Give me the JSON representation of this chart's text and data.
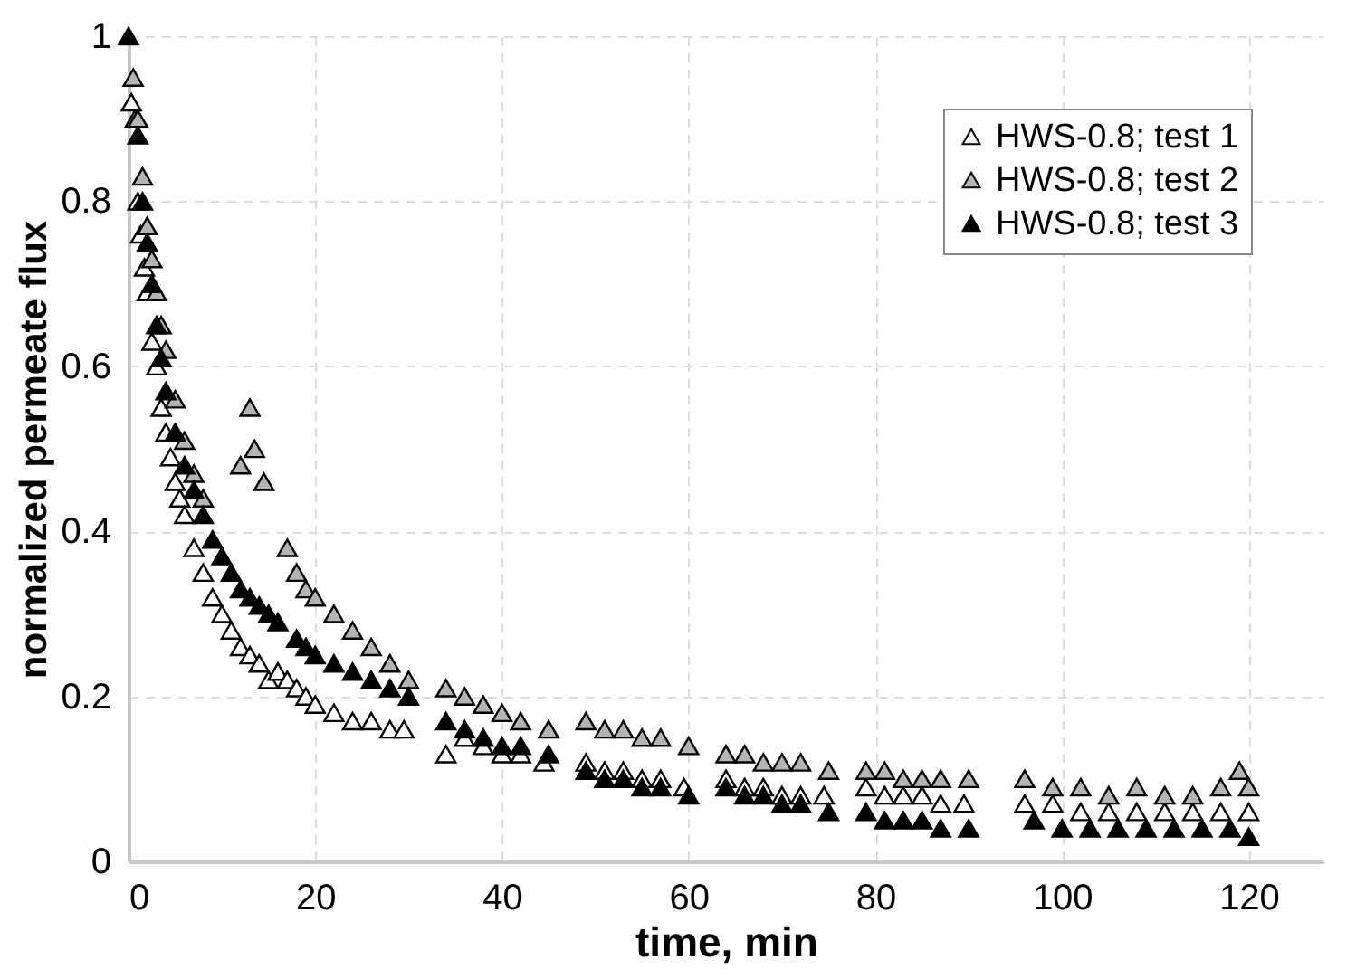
{
  "chart_data": {
    "type": "scatter",
    "xlabel": "time, min",
    "ylabel": "normalized permeate flux",
    "xlim": [
      0,
      128
    ],
    "xticks": [
      0,
      20,
      40,
      60,
      80,
      100,
      120
    ],
    "ylim": [
      0,
      1
    ],
    "yticks": [
      0,
      0.2,
      0.4,
      0.6,
      0.8,
      1
    ],
    "grid": true,
    "legend": "top right",
    "marker": "triangle",
    "series": [
      {
        "name": "HWS-0.8; test 1",
        "color": "#ffffff",
        "x": [
          0.3,
          0.7,
          1,
          1.3,
          1.7,
          2,
          2.5,
          3,
          3.5,
          4,
          4.5,
          5,
          5.5,
          6,
          7,
          8,
          9,
          10,
          11,
          12,
          13,
          14,
          15,
          16,
          17,
          18,
          19,
          20,
          22,
          24,
          26,
          28,
          29.5,
          34,
          36,
          38,
          40,
          42,
          44.5,
          49,
          51,
          53,
          55,
          57,
          59.5,
          64,
          66,
          68,
          70,
          72,
          74.5,
          79,
          81,
          83,
          85,
          87,
          89.5,
          96,
          99,
          102,
          105,
          108,
          111,
          114,
          117,
          120
        ],
        "values": [
          0.92,
          0.9,
          0.8,
          0.76,
          0.72,
          0.69,
          0.63,
          0.6,
          0.55,
          0.52,
          0.49,
          0.46,
          0.44,
          0.42,
          0.38,
          0.35,
          0.32,
          0.3,
          0.28,
          0.26,
          0.25,
          0.24,
          0.22,
          0.23,
          0.22,
          0.21,
          0.2,
          0.19,
          0.18,
          0.17,
          0.17,
          0.16,
          0.16,
          0.13,
          0.15,
          0.14,
          0.13,
          0.13,
          0.12,
          0.12,
          0.11,
          0.11,
          0.1,
          0.1,
          0.09,
          0.1,
          0.09,
          0.09,
          0.08,
          0.08,
          0.08,
          0.09,
          0.08,
          0.08,
          0.08,
          0.07,
          0.07,
          0.07,
          0.07,
          0.06,
          0.06,
          0.06,
          0.06,
          0.06,
          0.06,
          0.06
        ]
      },
      {
        "name": "HWS-0.8; test 2",
        "color": "#b4b4b4",
        "x": [
          0.5,
          1,
          1.5,
          2,
          2.5,
          3,
          3.5,
          4,
          5,
          6,
          7,
          8,
          12,
          13,
          13.5,
          14.5,
          17,
          18,
          19,
          20,
          22,
          24,
          26,
          28,
          30,
          34,
          36,
          38,
          40,
          42,
          45,
          49,
          51,
          53,
          55,
          57,
          60,
          64,
          66,
          68,
          70,
          72,
          75,
          79,
          81,
          83,
          85,
          87,
          90,
          96,
          99,
          102,
          105,
          108,
          111,
          114,
          117,
          119,
          120
        ],
        "values": [
          0.95,
          0.9,
          0.83,
          0.77,
          0.73,
          0.69,
          0.65,
          0.62,
          0.56,
          0.51,
          0.47,
          0.44,
          0.48,
          0.55,
          0.5,
          0.46,
          0.38,
          0.35,
          0.33,
          0.32,
          0.3,
          0.28,
          0.26,
          0.24,
          0.22,
          0.21,
          0.2,
          0.19,
          0.18,
          0.17,
          0.16,
          0.17,
          0.16,
          0.16,
          0.15,
          0.15,
          0.14,
          0.13,
          0.13,
          0.12,
          0.12,
          0.12,
          0.11,
          0.11,
          0.11,
          0.1,
          0.1,
          0.1,
          0.1,
          0.1,
          0.09,
          0.09,
          0.08,
          0.09,
          0.08,
          0.08,
          0.09,
          0.11,
          0.09
        ]
      },
      {
        "name": "HWS-0.8; test 3",
        "color": "#000000",
        "x": [
          0,
          1,
          1.5,
          2,
          2.5,
          3,
          3.5,
          4,
          5,
          6,
          7,
          8,
          9,
          10,
          11,
          12,
          13,
          14,
          15,
          16,
          18,
          19,
          20,
          22,
          24,
          26,
          28,
          30,
          34,
          36,
          38,
          40,
          42,
          45,
          49,
          51,
          53,
          55,
          57,
          60,
          64,
          66,
          68,
          70,
          72,
          75,
          79,
          81,
          83,
          85,
          87,
          90,
          97,
          100,
          103,
          106,
          109,
          112,
          115,
          118,
          120
        ],
        "values": [
          1,
          0.88,
          0.8,
          0.75,
          0.7,
          0.65,
          0.61,
          0.57,
          0.52,
          0.48,
          0.45,
          0.42,
          0.39,
          0.37,
          0.35,
          0.33,
          0.32,
          0.31,
          0.3,
          0.29,
          0.27,
          0.26,
          0.25,
          0.24,
          0.23,
          0.22,
          0.21,
          0.2,
          0.17,
          0.16,
          0.15,
          0.14,
          0.14,
          0.13,
          0.11,
          0.1,
          0.1,
          0.09,
          0.09,
          0.08,
          0.09,
          0.08,
          0.08,
          0.07,
          0.07,
          0.06,
          0.06,
          0.05,
          0.05,
          0.05,
          0.04,
          0.04,
          0.05,
          0.04,
          0.04,
          0.04,
          0.04,
          0.04,
          0.04,
          0.04,
          0.03
        ]
      }
    ]
  }
}
